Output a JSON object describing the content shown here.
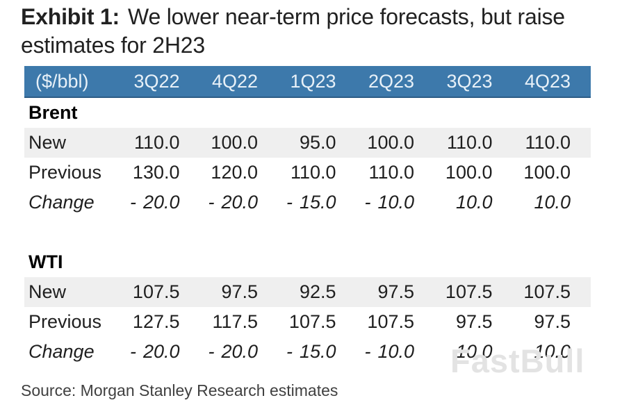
{
  "title": {
    "label": "Exhibit 1:",
    "text": "We lower near-term price forecasts, but raise estimates for 2H23"
  },
  "source": "Source: Morgan Stanley Research estimates",
  "watermark": "FastBull",
  "colors": {
    "header_bg": "#3D79AB",
    "header_text": "#E8F1F8",
    "header_border": "#2C5C85",
    "shaded_row": "#EFEFEF",
    "title_text": "#212121",
    "body_text": "#1F1F1F",
    "source_text": "#404040",
    "watermark_text": "#E3E3E3"
  },
  "chart_data": {
    "type": "table",
    "title": "Exhibit 1: We lower near-term price forecasts, but raise estimates for 2H23",
    "unit_header": "($/bbl)",
    "columns": [
      "3Q22",
      "4Q22",
      "1Q23",
      "2Q23",
      "3Q23",
      "4Q23"
    ],
    "sections": [
      {
        "name": "Brent",
        "rows": [
          {
            "label": "New",
            "shaded": true,
            "values": [
              110.0,
              100.0,
              95.0,
              100.0,
              110.0,
              110.0
            ]
          },
          {
            "label": "Previous",
            "values": [
              130.0,
              120.0,
              110.0,
              110.0,
              100.0,
              100.0
            ]
          },
          {
            "label": "Change",
            "italic": true,
            "values": [
              -20.0,
              -20.0,
              -15.0,
              -10.0,
              10.0,
              10.0
            ]
          }
        ]
      },
      {
        "name": "WTI",
        "rows": [
          {
            "label": "New",
            "shaded": true,
            "values": [
              107.5,
              97.5,
              92.5,
              97.5,
              107.5,
              107.5
            ]
          },
          {
            "label": "Previous",
            "values": [
              127.5,
              117.5,
              107.5,
              107.5,
              97.5,
              97.5
            ]
          },
          {
            "label": "Change",
            "italic": true,
            "values": [
              -20.0,
              -20.0,
              -15.0,
              -10.0,
              10.0,
              10.0
            ]
          }
        ]
      }
    ]
  }
}
